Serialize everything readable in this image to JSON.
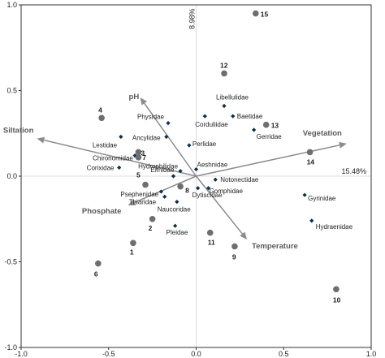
{
  "chart_data": {
    "type": "scatter",
    "title": "",
    "xlabel": "",
    "ylabel": "",
    "xlim": [
      -1.0,
      1.0
    ],
    "ylim": [
      -1.0,
      1.0
    ],
    "x_ticks": [
      "-1.0",
      "-0.5",
      "0.0",
      "0.5",
      "1.0"
    ],
    "y_ticks": [
      "1.0",
      "0.5",
      "0.0",
      "-0.5",
      "-1.0"
    ],
    "axis1_variance": "15.48%",
    "axis2_variance": "8.98%",
    "colors": {
      "taxon_marker": "#0d2f48",
      "site_marker": "#6e6e6e",
      "arrow": "#8c8c8c",
      "env_label": "#5a5a5a",
      "frame": "#333333",
      "zero_line": "#dddddd"
    },
    "environmental_vectors": [
      {
        "name": "pH",
        "x": -0.32,
        "y": 0.46
      },
      {
        "name": "Siltation",
        "x": -0.91,
        "y": 0.22
      },
      {
        "name": "Vegetation",
        "x": 0.86,
        "y": 0.19
      },
      {
        "name": "Phosphate",
        "x": -0.39,
        "y": -0.17
      },
      {
        "name": "Temperature",
        "x": 0.29,
        "y": -0.37
      }
    ],
    "taxa": [
      {
        "name": "Physidae",
        "x": -0.16,
        "y": 0.31
      },
      {
        "name": "Libellulidae",
        "x": 0.16,
        "y": 0.41
      },
      {
        "name": "Baetidae",
        "x": 0.21,
        "y": 0.35
      },
      {
        "name": "Corduliidae",
        "x": 0.05,
        "y": 0.35
      },
      {
        "name": "Gerridae",
        "x": 0.33,
        "y": 0.27
      },
      {
        "name": "Lestidae",
        "x": -0.43,
        "y": 0.23
      },
      {
        "name": "Ancylidae",
        "x": -0.17,
        "y": 0.23
      },
      {
        "name": "Perlidae",
        "x": -0.04,
        "y": 0.18
      },
      {
        "name": "Chironomidae",
        "x": -0.35,
        "y": 0.12
      },
      {
        "name": "Corixidae",
        "x": -0.44,
        "y": 0.05
      },
      {
        "name": "Hydrophilidae",
        "x": -0.09,
        "y": 0.03
      },
      {
        "name": "Elmidae",
        "x": -0.13,
        "y": 0.0
      },
      {
        "name": "Aeshnidae",
        "x": 0.0,
        "y": 0.04
      },
      {
        "name": "Notonectidae",
        "x": 0.11,
        "y": -0.02
      },
      {
        "name": "Gomphidae",
        "x": 0.07,
        "y": -0.07
      },
      {
        "name": "Psephenidae",
        "x": -0.2,
        "y": -0.09
      },
      {
        "name": "Thiaridae",
        "x": -0.18,
        "y": -0.12
      },
      {
        "name": "Dytiscidae",
        "x": 0.01,
        "y": -0.07
      },
      {
        "name": "Naucoridae",
        "x": -0.11,
        "y": -0.15
      },
      {
        "name": "Pleidae",
        "x": -0.12,
        "y": -0.29
      },
      {
        "name": "Gyrinidae",
        "x": 0.62,
        "y": -0.11
      },
      {
        "name": "Hydraenidae",
        "x": 0.66,
        "y": -0.26
      }
    ],
    "sites": [
      {
        "label": "1",
        "x": -0.36,
        "y": -0.39
      },
      {
        "label": "2",
        "x": -0.25,
        "y": -0.25
      },
      {
        "label": "3",
        "x": -0.33,
        "y": 0.14
      },
      {
        "label": "4",
        "x": -0.54,
        "y": 0.34
      },
      {
        "label": "5",
        "x": -0.29,
        "y": -0.05
      },
      {
        "label": "6",
        "x": -0.56,
        "y": -0.51
      },
      {
        "label": "7",
        "x": -0.33,
        "y": 0.11
      },
      {
        "label": "8",
        "x": -0.09,
        "y": -0.06
      },
      {
        "label": "9",
        "x": 0.22,
        "y": -0.41
      },
      {
        "label": "10",
        "x": 0.8,
        "y": -0.66
      },
      {
        "label": "11",
        "x": 0.08,
        "y": -0.33
      },
      {
        "label": "12",
        "x": 0.16,
        "y": 0.6
      },
      {
        "label": "13",
        "x": 0.4,
        "y": 0.3
      },
      {
        "label": "14",
        "x": 0.65,
        "y": 0.14
      },
      {
        "label": "15",
        "x": 0.34,
        "y": 0.95
      }
    ]
  }
}
